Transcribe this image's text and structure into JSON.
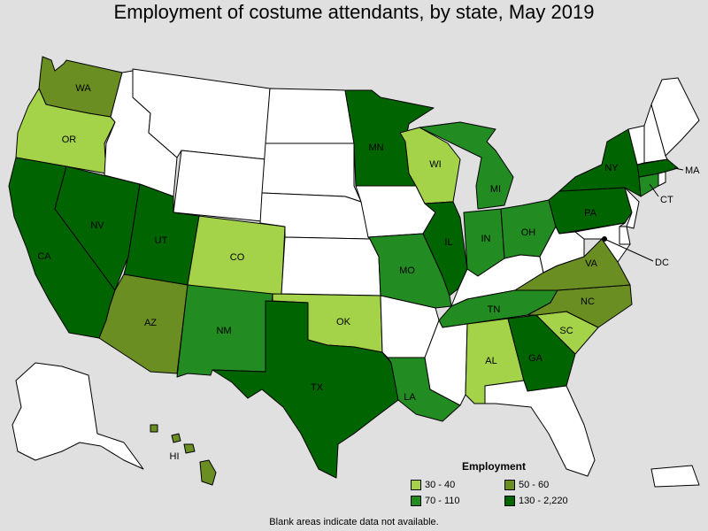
{
  "title": "Employment of costume attendants, by state, May 2019",
  "footnote": "Blank areas indicate data not available.",
  "legend": {
    "title": "Employment",
    "items": [
      {
        "label": "30 - 40",
        "color": "#a4d34a"
      },
      {
        "label": "50 - 60",
        "color": "#6b8e23"
      },
      {
        "label": "70 - 110",
        "color": "#228b22"
      },
      {
        "label": "130 - 2,220",
        "color": "#006400"
      }
    ]
  },
  "colors": {
    "blank": "#ffffff",
    "c1": "#a4d34a",
    "c2": "#6b8e23",
    "c3": "#228b22",
    "c4": "#006400"
  },
  "states": [
    {
      "code": "WA",
      "class": "c2",
      "label": "WA"
    },
    {
      "code": "OR",
      "class": "c1",
      "label": "OR"
    },
    {
      "code": "CA",
      "class": "c4",
      "label": "CA"
    },
    {
      "code": "NV",
      "class": "c4",
      "label": "NV"
    },
    {
      "code": "ID",
      "class": "blank",
      "label": ""
    },
    {
      "code": "MT",
      "class": "blank",
      "label": ""
    },
    {
      "code": "WY",
      "class": "blank",
      "label": ""
    },
    {
      "code": "UT",
      "class": "c4",
      "label": "UT"
    },
    {
      "code": "AZ",
      "class": "c2",
      "label": "AZ"
    },
    {
      "code": "CO",
      "class": "c1",
      "label": "CO"
    },
    {
      "code": "NM",
      "class": "c3",
      "label": "NM"
    },
    {
      "code": "ND",
      "class": "blank",
      "label": ""
    },
    {
      "code": "SD",
      "class": "blank",
      "label": ""
    },
    {
      "code": "NE",
      "class": "blank",
      "label": ""
    },
    {
      "code": "KS",
      "class": "blank",
      "label": ""
    },
    {
      "code": "OK",
      "class": "c1",
      "label": "OK"
    },
    {
      "code": "TX",
      "class": "c4",
      "label": "TX"
    },
    {
      "code": "MN",
      "class": "c4",
      "label": "MN"
    },
    {
      "code": "IA",
      "class": "blank",
      "label": ""
    },
    {
      "code": "MO",
      "class": "c3",
      "label": "MO"
    },
    {
      "code": "AR",
      "class": "blank",
      "label": ""
    },
    {
      "code": "LA",
      "class": "c3",
      "label": "LA"
    },
    {
      "code": "WI",
      "class": "c1",
      "label": "WI"
    },
    {
      "code": "IL",
      "class": "c4",
      "label": "IL"
    },
    {
      "code": "MI",
      "class": "c3",
      "label": "MI"
    },
    {
      "code": "IN",
      "class": "c3",
      "label": "IN"
    },
    {
      "code": "OH",
      "class": "c3",
      "label": "OH"
    },
    {
      "code": "KY",
      "class": "blank",
      "label": ""
    },
    {
      "code": "TN",
      "class": "c3",
      "label": "TN"
    },
    {
      "code": "MS",
      "class": "blank",
      "label": ""
    },
    {
      "code": "AL",
      "class": "c1",
      "label": "AL"
    },
    {
      "code": "GA",
      "class": "c4",
      "label": "GA"
    },
    {
      "code": "FL",
      "class": "blank",
      "label": ""
    },
    {
      "code": "SC",
      "class": "c1",
      "label": "SC"
    },
    {
      "code": "NC",
      "class": "c2",
      "label": "NC"
    },
    {
      "code": "VA",
      "class": "c2",
      "label": "VA"
    },
    {
      "code": "WV",
      "class": "blank",
      "label": ""
    },
    {
      "code": "PA",
      "class": "c4",
      "label": "PA"
    },
    {
      "code": "NY",
      "class": "c4",
      "label": "NY"
    },
    {
      "code": "NJ",
      "class": "blank",
      "label": ""
    },
    {
      "code": "DE",
      "class": "blank",
      "label": ""
    },
    {
      "code": "MD",
      "class": "blank",
      "label": ""
    },
    {
      "code": "DC",
      "class": "c4",
      "label": "DC"
    },
    {
      "code": "CT",
      "class": "c3",
      "label": "CT"
    },
    {
      "code": "RI",
      "class": "blank",
      "label": ""
    },
    {
      "code": "MA",
      "class": "c4",
      "label": "MA"
    },
    {
      "code": "VT",
      "class": "blank",
      "label": ""
    },
    {
      "code": "NH",
      "class": "blank",
      "label": ""
    },
    {
      "code": "ME",
      "class": "blank",
      "label": ""
    },
    {
      "code": "AK",
      "class": "blank",
      "label": ""
    },
    {
      "code": "HI",
      "class": "c2",
      "label": "HI"
    },
    {
      "code": "PR",
      "class": "blank",
      "label": ""
    }
  ]
}
